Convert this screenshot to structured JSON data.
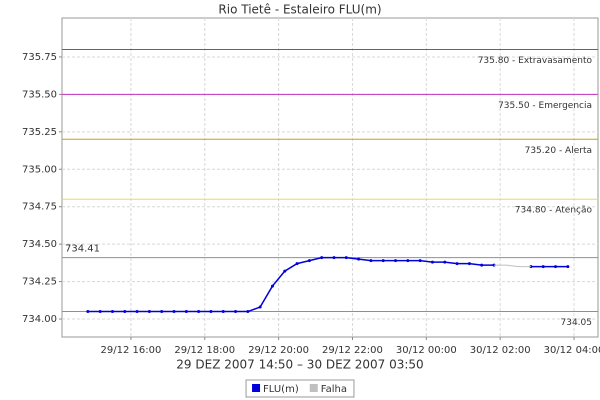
{
  "chart_data": {
    "type": "line",
    "title": "Rio Tietê - Estaleiro FLU(m)",
    "x_label": "29 DEZ 2007 14:50 – 30 DEZ 2007 03:50",
    "x": [
      "29/12 14:50",
      "29/12 15:10",
      "29/12 15:30",
      "29/12 15:50",
      "29/12 16:10",
      "29/12 16:30",
      "29/12 16:50",
      "29/12 17:10",
      "29/12 17:30",
      "29/12 17:50",
      "29/12 18:10",
      "29/12 18:30",
      "29/12 18:50",
      "29/12 19:10",
      "29/12 19:30",
      "29/12 19:50",
      "29/12 20:10",
      "29/12 20:30",
      "29/12 20:50",
      "29/12 21:10",
      "29/12 21:30",
      "29/12 21:50",
      "29/12 22:10",
      "29/12 22:30",
      "29/12 22:50",
      "29/12 23:10",
      "29/12 23:30",
      "29/12 23:50",
      "30/12 00:10",
      "30/12 00:30",
      "30/12 00:50",
      "30/12 01:10",
      "30/12 01:30",
      "30/12 01:50",
      "30/12 02:10",
      "30/12 02:30",
      "30/12 02:50",
      "30/12 03:10",
      "30/12 03:30",
      "30/12 03:50"
    ],
    "series": [
      {
        "name": "FLU(m)",
        "color": "#0000dd",
        "values": [
          734.05,
          734.05,
          734.05,
          734.05,
          734.05,
          734.05,
          734.05,
          734.05,
          734.05,
          734.05,
          734.05,
          734.05,
          734.05,
          734.05,
          734.08,
          734.22,
          734.32,
          734.37,
          734.39,
          734.41,
          734.41,
          734.41,
          734.4,
          734.39,
          734.39,
          734.39,
          734.39,
          734.39,
          734.38,
          734.38,
          734.37,
          734.37,
          734.36,
          734.36,
          null,
          null,
          734.35,
          734.35,
          734.35,
          734.35
        ]
      },
      {
        "name": "Falha",
        "color": "#c0c0c0",
        "values": [
          null,
          null,
          null,
          null,
          null,
          null,
          null,
          null,
          null,
          null,
          null,
          null,
          null,
          null,
          null,
          null,
          null,
          null,
          null,
          null,
          null,
          null,
          null,
          null,
          null,
          null,
          null,
          null,
          null,
          null,
          null,
          null,
          null,
          734.36,
          734.36,
          734.35,
          734.35,
          null,
          null,
          null
        ]
      }
    ],
    "xlim": [
      "29/12 14:08",
      "30/12 04:39"
    ],
    "xticks": [
      "29/12 16:00",
      "29/12 18:00",
      "29/12 20:00",
      "29/12 22:00",
      "30/12 00:00",
      "30/12 02:00",
      "30/12 04:00"
    ],
    "ylim": [
      733.88,
      736.01
    ],
    "yticks": [
      {
        "value": 734,
        "label": "734.00"
      },
      734.25,
      {
        "value": 734.5,
        "label": "734.50"
      },
      734.75,
      {
        "value": 735,
        "label": "735.00"
      },
      735.25,
      {
        "value": 735.5,
        "label": "735.50"
      },
      735.75
    ],
    "grid": true,
    "reference_lines": [
      {
        "value": 735.8,
        "label": "735.80 - Extravasamento",
        "color": "#e03030",
        "label_side": "right"
      },
      {
        "value": 735.5,
        "label": "735.50 - Emergencia",
        "color": "#c030c0",
        "label_side": "right"
      },
      {
        "value": 735.2,
        "label": "735.20 - Alerta",
        "color": "#d0a000",
        "label_side": "right"
      },
      {
        "value": 734.8,
        "label": "734.80 - Atenção",
        "color": "#e8e040",
        "label_side": "right"
      },
      {
        "value": 734.41,
        "label": "734.41",
        "color": "#909090",
        "label_side": "left"
      },
      {
        "value": 734.05,
        "label": "734.05",
        "color": "#909090",
        "label_side": "right"
      }
    ],
    "legend": "bottom"
  }
}
